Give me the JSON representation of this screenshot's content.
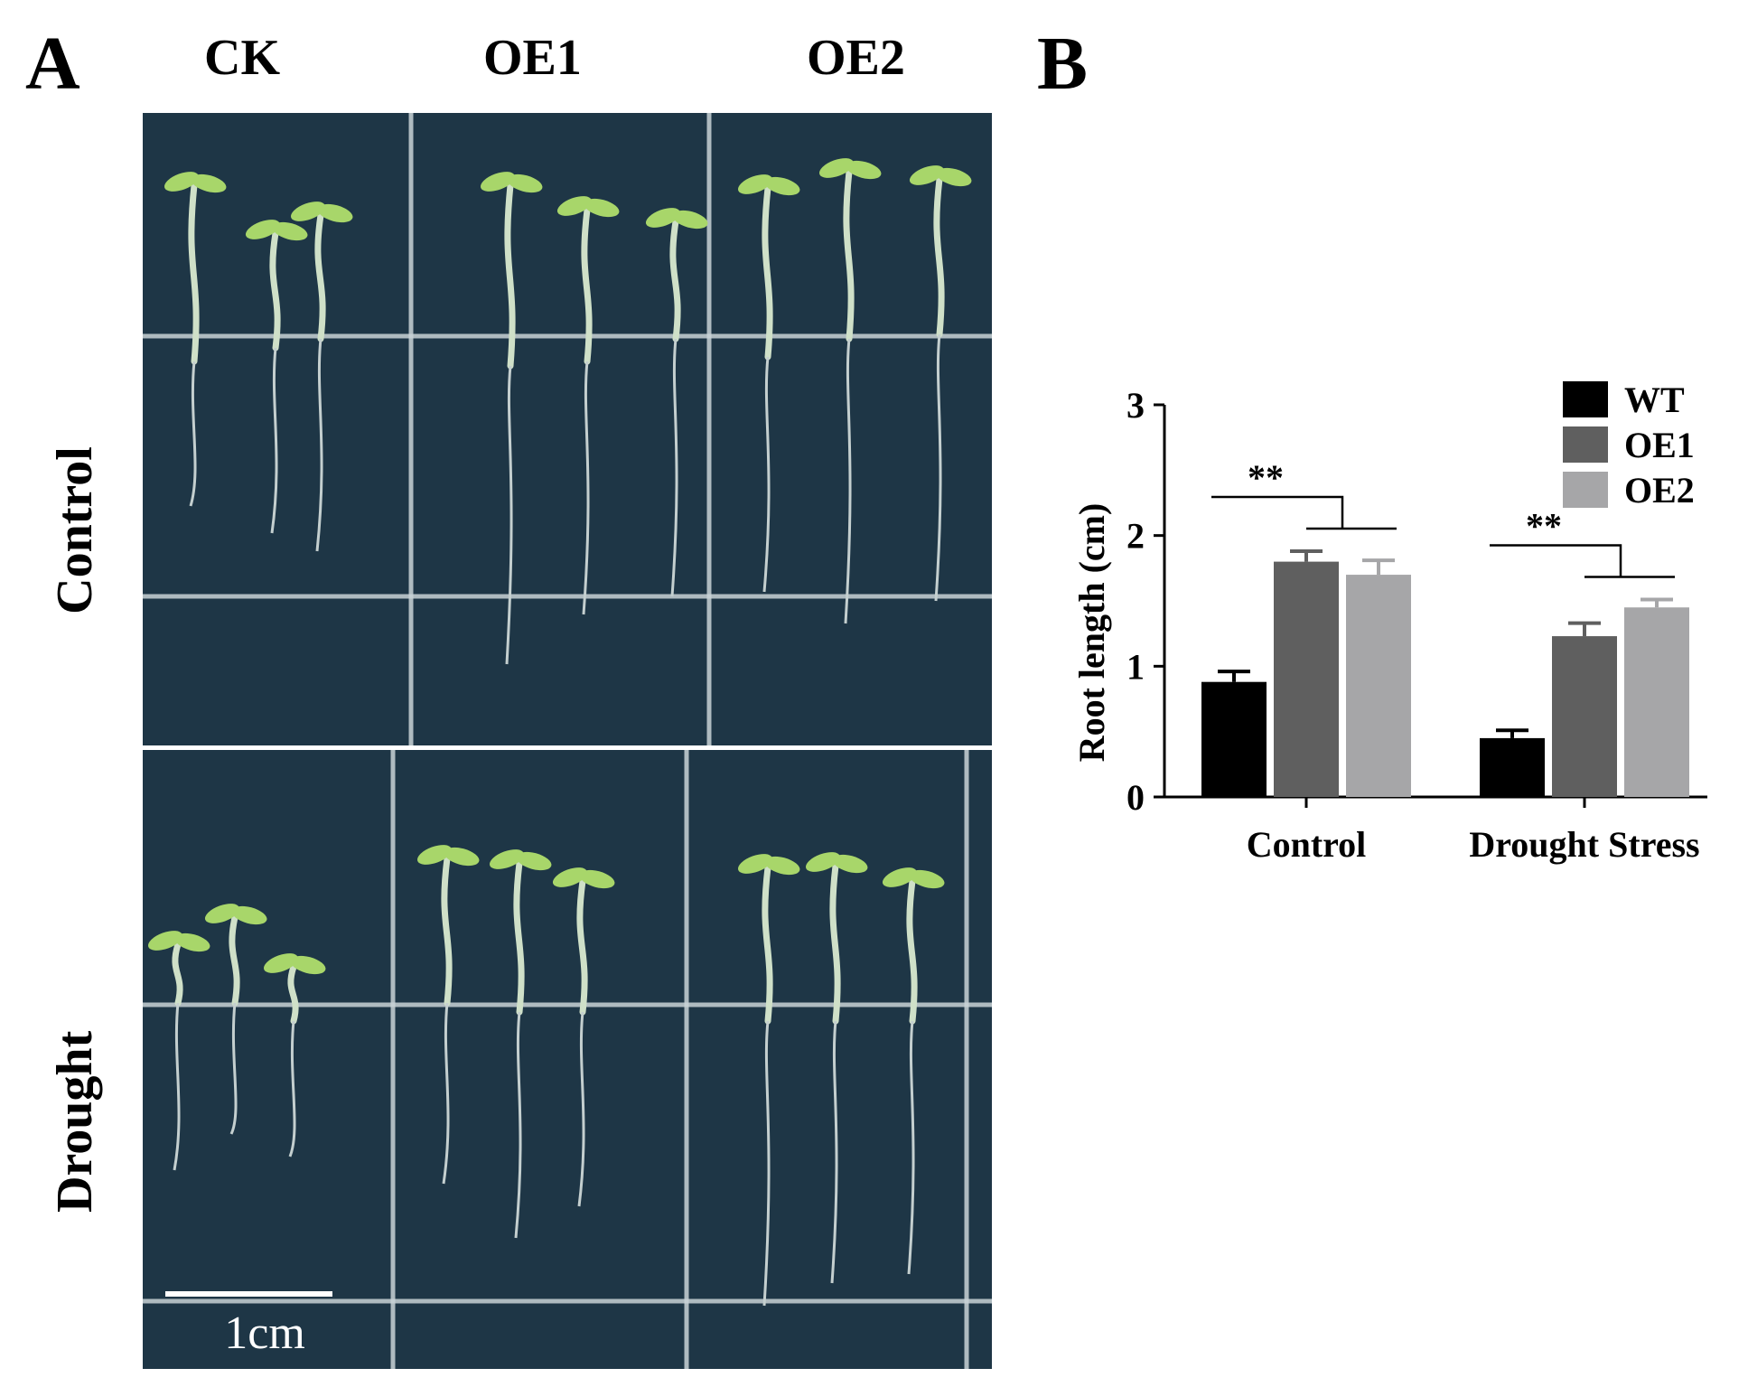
{
  "panel_a": {
    "letter": "A",
    "columns": [
      "CK",
      "OE1",
      "OE2"
    ],
    "rows": [
      "Control",
      "Drought"
    ],
    "scale_bar_label": "1cm",
    "colors": {
      "plate": "#1e3646",
      "grid": "#c9d2d6",
      "seedling": "#cfe0c8",
      "cotyledon": "#a8d66a"
    }
  },
  "panel_b": {
    "letter": "B",
    "significance": "**"
  },
  "chart_data": {
    "type": "bar",
    "categories": [
      "Control",
      "Drought Stress"
    ],
    "series": [
      {
        "name": "WT",
        "color": "#000000",
        "values": [
          0.88,
          0.45
        ],
        "errors": [
          0.08,
          0.06
        ]
      },
      {
        "name": "OE1",
        "color": "#5f5f5f",
        "values": [
          1.8,
          1.23
        ],
        "errors": [
          0.08,
          0.1
        ]
      },
      {
        "name": "OE2",
        "color": "#a6a6a8",
        "values": [
          1.7,
          1.45
        ],
        "errors": [
          0.11,
          0.06
        ]
      }
    ],
    "ylabel": "Root length (cm)",
    "xlabel": "",
    "ylim": [
      0,
      3
    ],
    "yticks": [
      0,
      1,
      2,
      3
    ],
    "legend": "top-right",
    "grid": false
  }
}
